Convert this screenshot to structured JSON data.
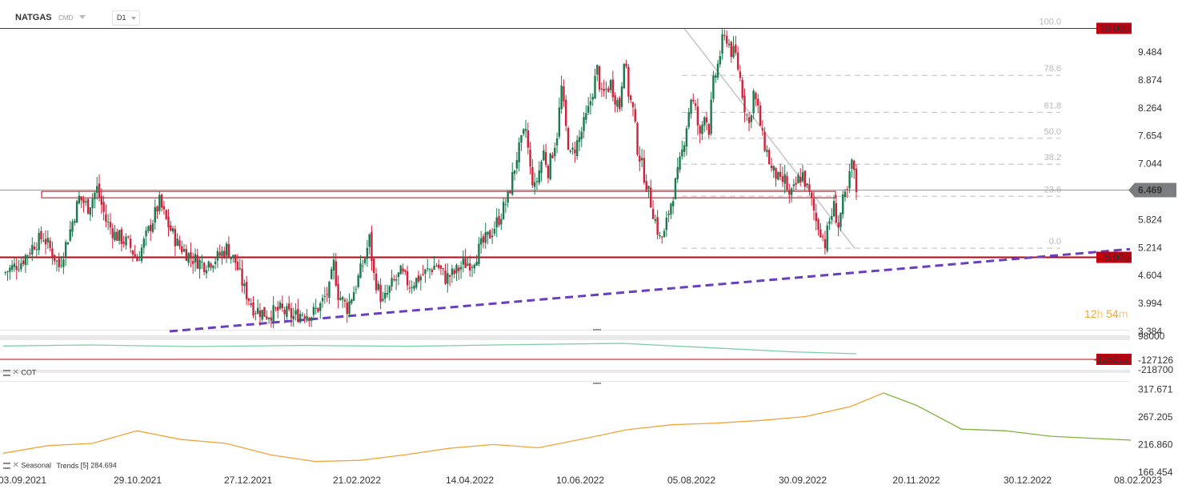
{
  "header": {
    "symbol": "NATGAS",
    "symbol_type": "CMD",
    "timeframe": "D1",
    "timeframe_icon": "chevron-down-icon"
  },
  "countdown": {
    "hours": "12",
    "h_unit": "h",
    "minutes": "54",
    "m_unit": "m"
  },
  "colors": {
    "bull": "#1a7a4e",
    "bear": "#d0203a",
    "level": "#c0000f",
    "trend": "#6a3fbf",
    "fib": "#cccccc",
    "cot_line": "#7dcfa7",
    "seasonal_past": "#f0a43a",
    "seasonal_future": "#7fb33d"
  },
  "panels": {
    "cot": {
      "label": "COT"
    },
    "seasonal": {
      "label": "Seasonal",
      "indicator": "Trends",
      "period": "[5]",
      "value": "284.694"
    }
  },
  "x_axis": {
    "labels": [
      "03.09.2021",
      "29.10.2021",
      "27.12.2021",
      "21.02.2022",
      "14.04.2022",
      "10.06.2022",
      "05.08.2022",
      "30.09.2022",
      "20.11.2022",
      "30.12.2022",
      "08.02.2023"
    ]
  },
  "chart_data": [
    {
      "type": "candlestick",
      "title": "NATGAS",
      "y_ticks": [
        "9.484",
        "8.874",
        "8.264",
        "7.654",
        "7.044",
        "5.824",
        "5.214",
        "4.604",
        "3.994",
        "3.384"
      ],
      "ylim": [
        3.384,
        10.2
      ],
      "current_price": "6.469",
      "levels": [
        {
          "value": "10.000",
          "label": "10.000"
        },
        {
          "value": "5.000",
          "label": "5.000"
        }
      ],
      "fibonacci": [
        "100.0",
        "78.6",
        "61.8",
        "50.0",
        "38.2",
        "23.6",
        "0.0"
      ],
      "fibonacci_range": [
        5.2,
        10.0
      ],
      "support_zone": [
        6.3,
        6.44
      ],
      "close_path": [
        [
          0,
          4.65
        ],
        [
          8,
          4.9
        ],
        [
          14,
          5.3
        ],
        [
          18,
          5.45
        ],
        [
          22,
          5.1
        ],
        [
          25,
          4.8
        ],
        [
          30,
          5.6
        ],
        [
          34,
          6.3
        ],
        [
          38,
          6.1
        ],
        [
          42,
          6.5
        ],
        [
          46,
          5.8
        ],
        [
          50,
          5.5
        ],
        [
          56,
          5.3
        ],
        [
          60,
          4.95
        ],
        [
          66,
          5.7
        ],
        [
          70,
          6.2
        ],
        [
          73,
          5.8
        ],
        [
          78,
          5.3
        ],
        [
          84,
          5.0
        ],
        [
          90,
          4.85
        ],
        [
          96,
          5.0
        ],
        [
          100,
          5.2
        ],
        [
          104,
          4.9
        ],
        [
          108,
          4.3
        ],
        [
          112,
          3.9
        ],
        [
          118,
          3.75
        ],
        [
          124,
          3.85
        ],
        [
          130,
          3.7
        ],
        [
          134,
          3.8
        ],
        [
          138,
          3.75
        ],
        [
          142,
          3.95
        ],
        [
          146,
          4.3
        ],
        [
          148,
          4.85
        ],
        [
          150,
          4.2
        ],
        [
          154,
          3.9
        ],
        [
          158,
          4.4
        ],
        [
          162,
          5.0
        ],
        [
          164,
          5.4
        ],
        [
          166,
          4.6
        ],
        [
          170,
          4.0
        ],
        [
          174,
          4.4
        ],
        [
          178,
          4.65
        ],
        [
          182,
          4.4
        ],
        [
          186,
          4.55
        ],
        [
          190,
          4.7
        ],
        [
          194,
          4.85
        ],
        [
          198,
          4.55
        ],
        [
          202,
          4.65
        ],
        [
          206,
          4.85
        ],
        [
          210,
          4.9
        ],
        [
          214,
          5.25
        ],
        [
          218,
          5.5
        ],
        [
          222,
          5.85
        ],
        [
          226,
          6.3
        ],
        [
          230,
          7.2
        ],
        [
          234,
          7.8
        ],
        [
          236,
          6.9
        ],
        [
          238,
          6.5
        ],
        [
          242,
          7.3
        ],
        [
          244,
          6.9
        ],
        [
          248,
          7.7
        ],
        [
          250,
          8.7
        ],
        [
          252,
          7.8
        ],
        [
          254,
          7.2
        ],
        [
          258,
          7.6
        ],
        [
          262,
          8.2
        ],
        [
          266,
          9.1
        ],
        [
          268,
          8.5
        ],
        [
          272,
          8.8
        ],
        [
          274,
          8.5
        ],
        [
          276,
          8.3
        ],
        [
          278,
          9.4
        ],
        [
          280,
          8.6
        ],
        [
          282,
          8.2
        ],
        [
          284,
          7.4
        ],
        [
          286,
          7.0
        ],
        [
          288,
          6.6
        ],
        [
          290,
          6.2
        ],
        [
          292,
          5.8
        ],
        [
          294,
          5.4
        ],
        [
          296,
          5.5
        ],
        [
          298,
          6.0
        ],
        [
          300,
          6.4
        ],
        [
          302,
          6.8
        ],
        [
          304,
          7.3
        ],
        [
          306,
          7.9
        ],
        [
          308,
          8.5
        ],
        [
          310,
          8.2
        ],
        [
          312,
          7.6
        ],
        [
          314,
          8.2
        ],
        [
          316,
          7.8
        ],
        [
          318,
          8.8
        ],
        [
          320,
          9.2
        ],
        [
          322,
          9.7
        ],
        [
          324,
          9.8
        ],
        [
          326,
          9.5
        ],
        [
          328,
          9.4
        ],
        [
          330,
          8.9
        ],
        [
          332,
          8.3
        ],
        [
          334,
          7.9
        ],
        [
          336,
          8.6
        ],
        [
          338,
          8.2
        ],
        [
          340,
          7.6
        ],
        [
          342,
          7.3
        ],
        [
          344,
          6.9
        ],
        [
          346,
          6.8
        ],
        [
          348,
          6.6
        ],
        [
          350,
          6.7
        ],
        [
          352,
          6.3
        ],
        [
          354,
          6.45
        ],
        [
          356,
          6.7
        ],
        [
          358,
          6.8
        ],
        [
          360,
          6.5
        ],
        [
          362,
          6.2
        ],
        [
          364,
          5.8
        ],
        [
          366,
          5.6
        ],
        [
          368,
          5.3
        ],
        [
          370,
          5.8
        ],
        [
          372,
          6.1
        ],
        [
          374,
          5.7
        ],
        [
          376,
          6.2
        ],
        [
          378,
          6.4
        ],
        [
          380,
          7.1
        ],
        [
          382,
          6.469
        ]
      ]
    },
    {
      "type": "line",
      "title": "COT",
      "y_ticks": [
        "98000",
        "-127126",
        "-218700"
      ],
      "last_value": "-128212",
      "points": [
        [
          0,
          -55000
        ],
        [
          40,
          -45000
        ],
        [
          90,
          -60000
        ],
        [
          140,
          -50000
        ],
        [
          190,
          -58000
        ],
        [
          240,
          -42000
        ],
        [
          290,
          -30000
        ],
        [
          330,
          -70000
        ],
        [
          370,
          -110000
        ],
        [
          400,
          -128212
        ]
      ]
    },
    {
      "type": "line",
      "title": "Seasonal Trends",
      "y_ticks": [
        "317.671",
        "267.205",
        "216.860",
        "166.454"
      ],
      "past": [
        [
          0,
          201
        ],
        [
          20,
          215
        ],
        [
          40,
          219
        ],
        [
          60,
          242
        ],
        [
          80,
          226
        ],
        [
          100,
          219
        ],
        [
          120,
          198
        ],
        [
          140,
          186
        ],
        [
          160,
          188
        ],
        [
          180,
          198
        ],
        [
          200,
          210
        ],
        [
          220,
          217
        ],
        [
          240,
          211
        ],
        [
          260,
          227
        ],
        [
          280,
          244
        ],
        [
          300,
          253
        ],
        [
          320,
          256
        ],
        [
          340,
          261
        ],
        [
          360,
          268
        ],
        [
          380,
          286
        ],
        [
          395,
          311
        ]
      ],
      "future": [
        [
          395,
          311
        ],
        [
          410,
          288
        ],
        [
          430,
          245
        ],
        [
          450,
          242
        ],
        [
          470,
          232
        ],
        [
          490,
          228
        ],
        [
          506,
          225
        ]
      ],
      "future_start_label": "20.11.2022"
    }
  ]
}
